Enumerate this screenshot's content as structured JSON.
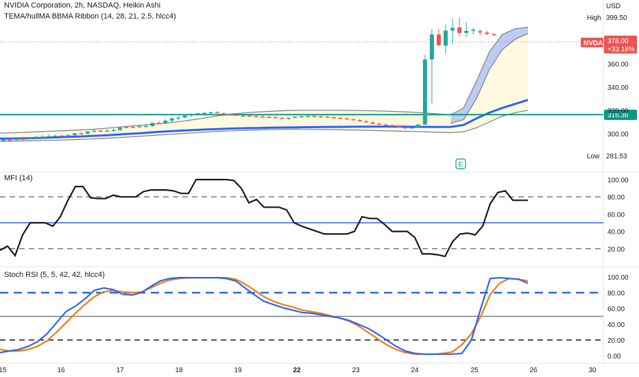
{
  "header": {
    "title": "NVIDIA Corporation, 2h, NASDAQ, Heikin Ashi",
    "indicator_1": "TEMA/hullMA BBMA Ribbon (14, 28, 21, 2.5, hlcc4)",
    "panel2_title": "MFI (14)",
    "panel3_title": "Stoch RSI (5, 5, 42, 42, hlcc4)"
  },
  "price_axis": {
    "currency": "USD",
    "high_label": "High",
    "high_value": "399.50",
    "low_label": "Low",
    "low_value": "281.53",
    "ticks": [
      "360.00",
      "340.00",
      "320.00",
      "300.00"
    ],
    "symbol_tag": "NVDA",
    "last_price": "378.00",
    "change": "+33.18%",
    "level_tag": "316.36"
  },
  "mfi_axis": {
    "ticks": [
      "100.00",
      "80.00",
      "60.00",
      "40.00",
      "20.00"
    ]
  },
  "stoch_axis": {
    "ticks": [
      "100.00",
      "80.00",
      "60.00",
      "40.00",
      "20.00",
      "0.00"
    ]
  },
  "time_axis": {
    "labels": [
      "15",
      "16",
      "17",
      "18",
      "19",
      "22",
      "23",
      "24",
      "25",
      "26",
      "30"
    ]
  },
  "earnings_marker": "E",
  "colors": {
    "up": "#26a69a",
    "down": "#ef5350",
    "ma_blue": "#2962ff",
    "band_gray": "#787b86",
    "hline_green": "#089981",
    "fill_yellow": "#fff9e0",
    "fill_blue": "#b3c4f5",
    "stoch_k": "#2962ff",
    "stoch_d": "#f57c00",
    "mfi_line": "#131722"
  },
  "chart_data": [
    {
      "type": "candlestick",
      "title": "NVIDIA Corporation, 2h, NASDAQ, Heikin Ashi",
      "ylim": [
        281.53,
        399.5
      ],
      "horizontal_line": 316.36,
      "candles": [
        [
          293.8,
          295.4,
          292.6,
          294.7
        ],
        [
          294.7,
          295.7,
          293.6,
          294.6
        ],
        [
          294.6,
          296.0,
          293.8,
          295.7
        ],
        [
          295.7,
          297.2,
          294.2,
          295.2
        ],
        [
          295.3,
          297.2,
          294.6,
          296.6
        ],
        [
          296.7,
          297.9,
          295.5,
          297.3
        ],
        [
          297.3,
          298.6,
          296.4,
          297.4
        ],
        [
          297.4,
          299.2,
          296.6,
          297.8
        ],
        [
          297.8,
          299.0,
          296.9,
          298.2
        ],
        [
          298.3,
          299.1,
          297.6,
          297.8
        ],
        [
          297.8,
          299.8,
          297.3,
          298.7
        ],
        [
          298.7,
          300.6,
          297.9,
          300.3
        ],
        [
          300.3,
          301.3,
          299.1,
          300.0
        ],
        [
          300.0,
          302.1,
          299.5,
          301.9
        ],
        [
          301.9,
          304.1,
          301.1,
          302.5
        ],
        [
          302.5,
          303.2,
          301.6,
          302.4
        ],
        [
          302.4,
          303.8,
          301.4,
          302.6
        ],
        [
          302.6,
          304.4,
          301.8,
          303.2
        ],
        [
          303.2,
          305.6,
          302.2,
          305.2
        ],
        [
          305.2,
          306.0,
          304.5,
          305.7
        ],
        [
          305.8,
          307.4,
          304.9,
          305.7
        ],
        [
          305.6,
          306.8,
          305.0,
          306.3
        ],
        [
          306.3,
          308.5,
          305.9,
          306.5
        ],
        [
          306.5,
          309.6,
          305.8,
          309.3
        ],
        [
          309.3,
          311.0,
          308.4,
          309.0
        ],
        [
          309.0,
          312.6,
          308.1,
          311.2
        ],
        [
          311.2,
          314.2,
          310.0,
          313.1
        ],
        [
          313.1,
          315.1,
          311.6,
          313.8
        ],
        [
          313.8,
          316.7,
          313.1,
          315.5
        ],
        [
          315.5,
          317.5,
          314.6,
          316.8
        ],
        [
          316.8,
          317.7,
          315.7,
          317.5
        ],
        [
          317.5,
          318.5,
          316.5,
          317.9
        ],
        [
          317.9,
          318.9,
          317.0,
          318.4
        ],
        [
          318.4,
          319.4,
          317.6,
          317.5
        ],
        [
          317.5,
          318.1,
          316.6,
          316.5
        ],
        [
          316.5,
          317.3,
          316.0,
          316.3
        ],
        [
          316.3,
          317.1,
          315.3,
          315.4
        ],
        [
          315.4,
          316.8,
          314.9,
          315.5
        ],
        [
          315.5,
          316.6,
          314.6,
          315.2
        ],
        [
          315.2,
          315.9,
          314.2,
          314.7
        ],
        [
          314.7,
          316.1,
          314.0,
          314.4
        ],
        [
          314.4,
          315.4,
          313.9,
          314.1
        ],
        [
          314.1,
          315.1,
          313.5,
          313.5
        ],
        [
          313.5,
          314.5,
          312.8,
          312.8
        ],
        [
          312.8,
          313.7,
          312.1,
          313.6
        ],
        [
          313.6,
          314.8,
          313.3,
          314.6
        ],
        [
          314.6,
          315.4,
          313.9,
          314.8
        ],
        [
          314.8,
          315.7,
          314.1,
          315.2
        ],
        [
          315.2,
          316.0,
          314.5,
          314.8
        ],
        [
          314.8,
          315.6,
          313.9,
          314.6
        ],
        [
          314.6,
          315.3,
          313.7,
          314.0
        ],
        [
          314.0,
          315.0,
          313.2,
          313.6
        ],
        [
          313.6,
          314.6,
          312.9,
          313.0
        ],
        [
          313.0,
          314.0,
          312.2,
          312.3
        ],
        [
          312.3,
          313.2,
          311.6,
          311.6
        ],
        [
          311.6,
          312.6,
          310.6,
          310.6
        ],
        [
          310.6,
          311.6,
          309.6,
          309.6
        ],
        [
          309.6,
          310.6,
          308.5,
          308.5
        ],
        [
          308.5,
          309.6,
          307.6,
          307.7
        ],
        [
          307.7,
          308.9,
          307.0,
          307.2
        ],
        [
          307.2,
          308.2,
          306.3,
          306.5
        ],
        [
          306.5,
          307.2,
          305.3,
          305.4
        ],
        [
          305.4,
          306.1,
          304.4,
          304.6
        ],
        [
          304.6,
          305.7,
          303.9,
          305.4
        ],
        [
          305.4,
          308.3,
          304.9,
          307.8
        ],
        [
          307.8,
          367.6,
          307.6,
          363.7
        ],
        [
          363.7,
          390.0,
          326.0,
          385.2
        ],
        [
          385.2,
          390.0,
          375.0,
          376.0
        ],
        [
          375.6,
          393.8,
          368.3,
          388.5
        ],
        [
          388.5,
          398.8,
          376.6,
          390.8
        ],
        [
          391.2,
          399.5,
          383.5,
          386.5
        ],
        [
          386.5,
          395.5,
          382.7,
          388.2
        ],
        [
          388.2,
          390.6,
          385.3,
          389.2
        ],
        [
          388.0,
          389.5,
          384.5,
          386.8
        ],
        [
          386.8,
          388.6,
          384.3,
          385.5
        ],
        [
          385.5,
          386.4,
          383.6,
          384.6
        ]
      ],
      "ribbon": {
        "upper": [
          300.5,
          300.7,
          301.2,
          301.7,
          302.2,
          302.6,
          303.0,
          303.6,
          304.4,
          305.4,
          306.4,
          307.3,
          308.1,
          309.2,
          310.5,
          312.0,
          313.7,
          315.4,
          316.8,
          317.8,
          318.6,
          319.2,
          319.7,
          320.0,
          320.1,
          320.1,
          320.1,
          320.0,
          319.8,
          319.6,
          319.3,
          318.9,
          318.4,
          317.8,
          317.0,
          316.2,
          322.0,
          345.0,
          370.0,
          385.0,
          390.0,
          391.5
        ],
        "middle": [
          297.0,
          297.1,
          297.3,
          297.6,
          298.0,
          298.4,
          298.9,
          299.5,
          300.3,
          301.1,
          302.0,
          303.0,
          304.1,
          305.2,
          306.3,
          307.4,
          308.3,
          309.1,
          309.8,
          310.4,
          310.9,
          311.3,
          311.6,
          311.8,
          311.9,
          311.9,
          311.9,
          311.8,
          311.6,
          311.3,
          310.9,
          310.5,
          310.1,
          309.7,
          309.2,
          308.8,
          312.0,
          330.0,
          355.0,
          372.0,
          381.0,
          386.0
        ],
        "lower": [
          293.5,
          293.6,
          293.8,
          294.0,
          294.3,
          294.6,
          295.0,
          295.4,
          295.9,
          296.5,
          297.2,
          297.9,
          298.6,
          299.3,
          300.0,
          300.7,
          301.4,
          302.0,
          302.5,
          302.9,
          303.2,
          303.5,
          303.7,
          303.8,
          303.7,
          303.6,
          303.4,
          303.2,
          303.0,
          302.7,
          302.4,
          302.1,
          301.9,
          301.6,
          301.2,
          300.9,
          301.5,
          305.0,
          310.0,
          315.0,
          318.0,
          320.0
        ],
        "ma": [
          295.7,
          295.8,
          296.0,
          296.3,
          296.7,
          297.1,
          297.5,
          298.0,
          298.5,
          299.1,
          299.8,
          300.5,
          301.3,
          302.0,
          302.6,
          303.1,
          303.6,
          304.0,
          304.4,
          304.7,
          304.9,
          305.1,
          305.3,
          305.5,
          305.6,
          305.7,
          305.8,
          305.9,
          306.0,
          306.0,
          306.1,
          306.0,
          305.9,
          305.8,
          305.7,
          305.8,
          307.5,
          313.0,
          318.0,
          322.0,
          325.5,
          329.0
        ]
      }
    },
    {
      "type": "line",
      "title": "MFI (14)",
      "ylim": [
        0,
        100
      ],
      "levels": [
        80,
        50,
        20
      ],
      "values": [
        18,
        23,
        12,
        36,
        50,
        50,
        50,
        46,
        57,
        76,
        92,
        92,
        79,
        78,
        78,
        82,
        80,
        80,
        80,
        86,
        88,
        88,
        88,
        87,
        84,
        84,
        100,
        100,
        100,
        100,
        100,
        99,
        90,
        73,
        77,
        68,
        68,
        68,
        65,
        50,
        46,
        43,
        40,
        37,
        37,
        37,
        37,
        40,
        57,
        55,
        55,
        48,
        40,
        40,
        40,
        33,
        14,
        14,
        13,
        11,
        28,
        37,
        38,
        36,
        46,
        72,
        85,
        87,
        76,
        76,
        76
      ]
    },
    {
      "type": "line",
      "title": "Stoch RSI (5, 5, 42, 42, hlcc4)",
      "ylim": [
        0,
        100
      ],
      "levels": [
        80,
        50,
        20
      ],
      "series": [
        {
          "values": [
            4,
            6,
            8,
            12,
            18,
            28,
            42,
            56,
            63,
            72,
            83,
            86,
            84,
            78,
            77,
            80,
            88,
            95,
            98,
            99,
            99,
            99,
            99,
            99,
            98,
            95,
            86,
            77,
            69,
            65,
            61,
            58,
            55,
            54,
            52,
            50,
            48,
            45,
            40,
            35,
            28,
            20,
            12,
            6,
            3,
            2,
            2,
            2,
            2,
            3,
            20,
            60,
            98,
            99,
            98,
            97,
            92
          ]
        },
        {
          "values": [
            8,
            6,
            6,
            8,
            12,
            19,
            30,
            42,
            54,
            65,
            75,
            81,
            83,
            81,
            80,
            81,
            86,
            92,
            96,
            98,
            99,
            99,
            99,
            99,
            99,
            97,
            91,
            83,
            75,
            69,
            65,
            62,
            58,
            56,
            54,
            51,
            48,
            44,
            38,
            30,
            22,
            14,
            8,
            4,
            2,
            2,
            2,
            3,
            5,
            14,
            28,
            50,
            78,
            92,
            98,
            97,
            95
          ]
        }
      ]
    }
  ]
}
